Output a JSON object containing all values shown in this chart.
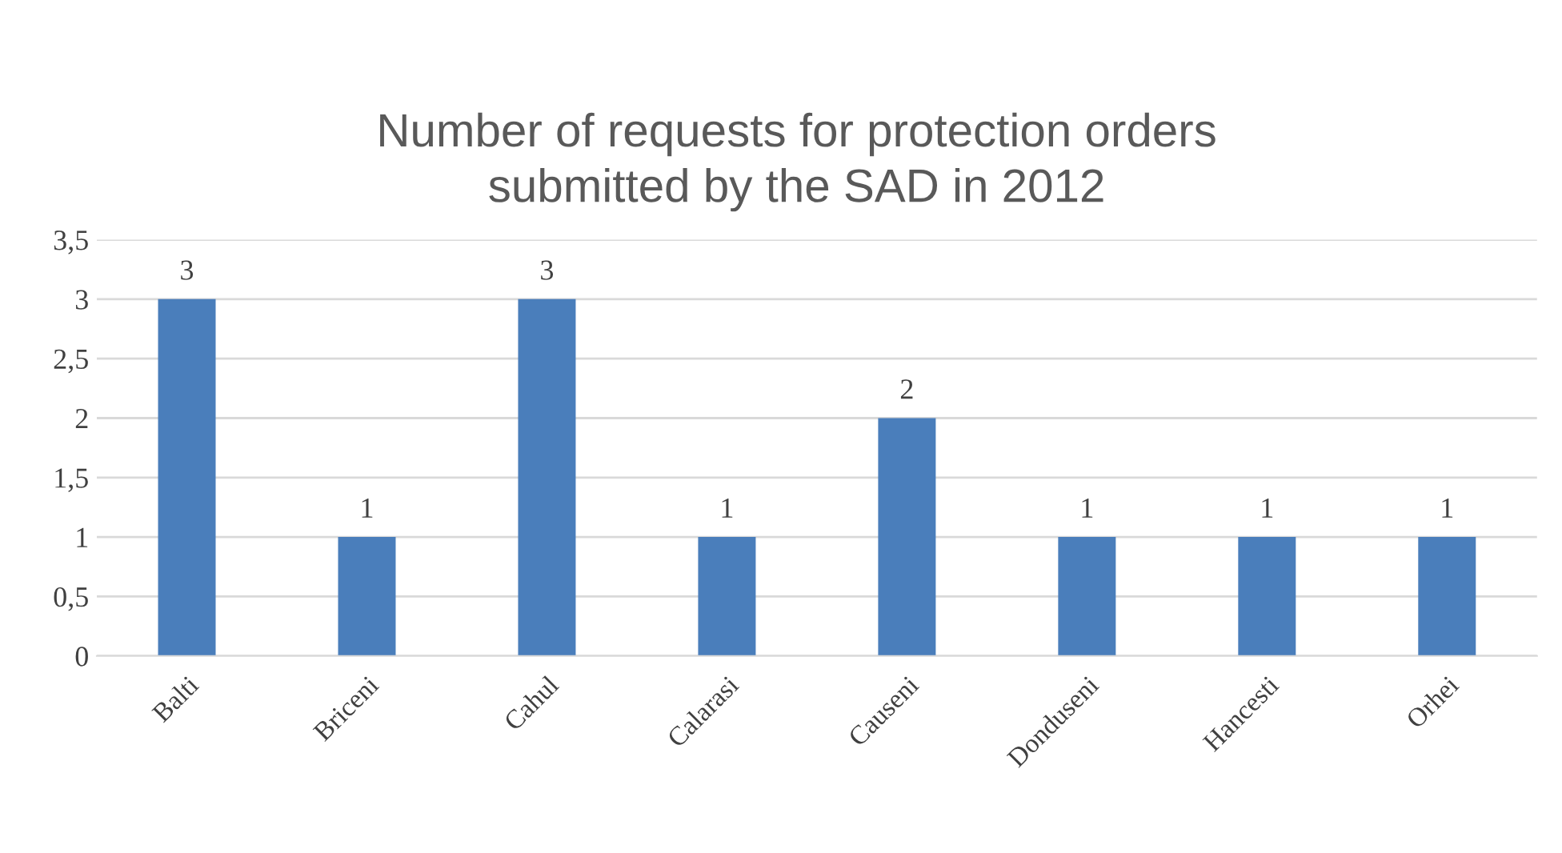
{
  "chart_data": {
    "type": "bar",
    "title": "Number of requests for protection orders\nsubmitted by the SAD in 2012",
    "categories": [
      "Balti",
      "Briceni",
      "Cahul",
      "Calarasi",
      "Causeni",
      "Donduseni",
      "Hancesti",
      "Orhei"
    ],
    "values": [
      3,
      1,
      3,
      1,
      2,
      1,
      1,
      1
    ],
    "color": "#4a7ebb",
    "ylim": [
      0,
      3.5
    ],
    "yticks": [
      0,
      {
        "value": 0.5,
        "label": "0,5"
      },
      1,
      {
        "value": 1.5,
        "label": "1,5"
      },
      2,
      {
        "value": 2.5,
        "label": "2,5"
      },
      3,
      {
        "value": 3.5,
        "label": "3,5"
      }
    ],
    "grid": "y",
    "data_labels": true
  }
}
